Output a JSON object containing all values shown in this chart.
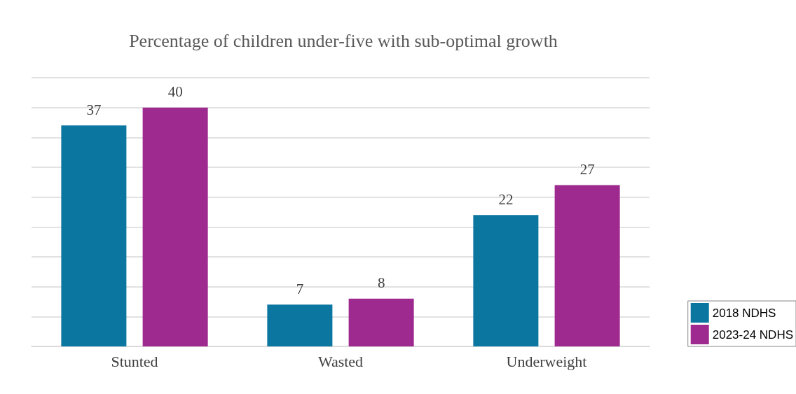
{
  "chart_data": {
    "type": "bar",
    "title": "Percentage of children under-five with sub-optimal growth",
    "categories": [
      "Stunted",
      "Wasted",
      "Underweight"
    ],
    "series": [
      {
        "name": "2018 NDHS",
        "color": "#0b76a0",
        "values": [
          37,
          7,
          22
        ]
      },
      {
        "name": "2023-24 NDHS",
        "color": "#9e2a8f",
        "values": [
          40,
          8,
          27
        ]
      }
    ],
    "ylim": [
      0,
      45
    ],
    "yticks": [
      0,
      5,
      10,
      15,
      20,
      25,
      30,
      35,
      40,
      45
    ],
    "grid": "y",
    "tick_labels": "x",
    "data_labels": true,
    "legend": "bottom right"
  }
}
